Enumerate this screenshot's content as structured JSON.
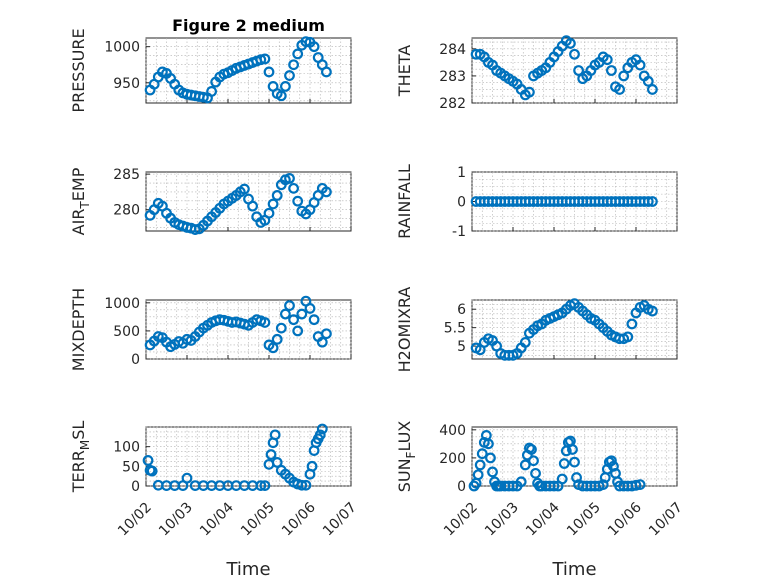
{
  "chart_data": [
    {
      "type": "scatter",
      "title": "Figure 2 medium",
      "ylabel": "PRESSURE",
      "ylim": [
        922,
        1012
      ],
      "yticks": [
        950,
        1000
      ],
      "xlim": [
        0,
        5
      ],
      "xticks": [
        "10/02",
        "10/03",
        "10/04",
        "10/05",
        "10/06",
        "10/07"
      ],
      "show_xticklabels": false,
      "xlabel": "",
      "x": [
        0.1,
        0.2,
        0.3,
        0.4,
        0.5,
        0.6,
        0.7,
        0.8,
        0.9,
        1.0,
        1.1,
        1.2,
        1.3,
        1.4,
        1.5,
        1.6,
        1.7,
        1.8,
        1.9,
        2.0,
        2.1,
        2.2,
        2.3,
        2.4,
        2.5,
        2.6,
        2.7,
        2.8,
        2.9,
        3.0,
        3.1,
        3.2,
        3.3,
        3.4,
        3.5,
        3.6,
        3.7,
        3.8,
        3.9,
        4.0,
        4.1,
        4.2,
        4.3,
        4.4
      ],
      "y": [
        940,
        948,
        958,
        965,
        963,
        956,
        948,
        940,
        936,
        934,
        933,
        932,
        931,
        930,
        929,
        938,
        951,
        958,
        962,
        964,
        967,
        970,
        972,
        974,
        976,
        978,
        980,
        982,
        983,
        965,
        945,
        935,
        932,
        945,
        960,
        975,
        990,
        1002,
        1007,
        1006,
        1000,
        985,
        975,
        965
      ]
    },
    {
      "type": "scatter",
      "title": "",
      "ylabel": "THETA",
      "ylim": [
        282,
        284.4
      ],
      "yticks": [
        282,
        283,
        284
      ],
      "xlim": [
        0,
        5
      ],
      "xticks": [
        "10/02",
        "10/03",
        "10/04",
        "10/05",
        "10/06",
        "10/07"
      ],
      "show_xticklabels": false,
      "xlabel": "",
      "x": [
        0.1,
        0.2,
        0.3,
        0.4,
        0.5,
        0.6,
        0.7,
        0.8,
        0.9,
        1.0,
        1.1,
        1.2,
        1.3,
        1.4,
        1.5,
        1.6,
        1.7,
        1.8,
        1.9,
        2.0,
        2.1,
        2.2,
        2.3,
        2.4,
        2.5,
        2.6,
        2.7,
        2.8,
        2.9,
        3.0,
        3.1,
        3.2,
        3.3,
        3.4,
        3.5,
        3.6,
        3.7,
        3.8,
        3.9,
        4.0,
        4.1,
        4.2,
        4.3,
        4.4
      ],
      "y": [
        283.8,
        283.8,
        283.7,
        283.5,
        283.4,
        283.2,
        283.1,
        283.0,
        282.9,
        282.8,
        282.7,
        282.5,
        282.3,
        282.4,
        283.0,
        283.1,
        283.2,
        283.3,
        283.5,
        283.7,
        283.9,
        284.1,
        284.3,
        284.2,
        283.8,
        283.2,
        282.9,
        283.0,
        283.2,
        283.4,
        283.5,
        283.7,
        283.6,
        283.2,
        282.6,
        282.5,
        283.0,
        283.3,
        283.5,
        283.6,
        283.4,
        283.0,
        282.8,
        282.5
      ]
    },
    {
      "type": "scatter",
      "title": "",
      "ylabel": "AIR_TEMP",
      "ylim": [
        277,
        285.3
      ],
      "yticks": [
        280,
        285
      ],
      "xlim": [
        0,
        5
      ],
      "xticks": [
        "10/02",
        "10/03",
        "10/04",
        "10/05",
        "10/06",
        "10/07"
      ],
      "show_xticklabels": false,
      "xlabel": "",
      "x": [
        0.1,
        0.2,
        0.3,
        0.4,
        0.5,
        0.6,
        0.7,
        0.8,
        0.9,
        1.0,
        1.1,
        1.2,
        1.3,
        1.4,
        1.5,
        1.6,
        1.7,
        1.8,
        1.9,
        2.0,
        2.1,
        2.2,
        2.3,
        2.4,
        2.5,
        2.6,
        2.7,
        2.8,
        2.9,
        3.0,
        3.1,
        3.2,
        3.3,
        3.4,
        3.5,
        3.6,
        3.7,
        3.8,
        3.9,
        4.0,
        4.1,
        4.2,
        4.3,
        4.4
      ],
      "y": [
        279.2,
        280.0,
        280.9,
        280.5,
        279.5,
        278.8,
        278.2,
        277.9,
        277.7,
        277.5,
        277.4,
        277.2,
        277.3,
        277.8,
        278.4,
        279.0,
        279.6,
        280.2,
        280.8,
        281.2,
        281.6,
        282.0,
        282.5,
        282.9,
        281.5,
        280.5,
        279.0,
        278.2,
        278.5,
        279.5,
        280.8,
        282.0,
        283.5,
        284.2,
        284.4,
        283.0,
        281.2,
        279.8,
        279.4,
        280.0,
        281.0,
        282.0,
        283.0,
        282.5
      ]
    },
    {
      "type": "scatter",
      "title": "",
      "ylabel": "RAINFALL",
      "ylim": [
        -1,
        1
      ],
      "yticks": [
        -1,
        0,
        1
      ],
      "xlim": [
        0,
        5
      ],
      "xticks": [
        "10/02",
        "10/03",
        "10/04",
        "10/05",
        "10/06",
        "10/07"
      ],
      "show_xticklabels": false,
      "xlabel": "",
      "x": [
        0.1,
        0.2,
        0.3,
        0.4,
        0.5,
        0.6,
        0.7,
        0.8,
        0.9,
        1.0,
        1.1,
        1.2,
        1.3,
        1.4,
        1.5,
        1.6,
        1.7,
        1.8,
        1.9,
        2.0,
        2.1,
        2.2,
        2.3,
        2.4,
        2.5,
        2.6,
        2.7,
        2.8,
        2.9,
        3.0,
        3.1,
        3.2,
        3.3,
        3.4,
        3.5,
        3.6,
        3.7,
        3.8,
        3.9,
        4.0,
        4.1,
        4.2,
        4.3,
        4.4
      ],
      "y": [
        0,
        0,
        0,
        0,
        0,
        0,
        0,
        0,
        0,
        0,
        0,
        0,
        0,
        0,
        0,
        0,
        0,
        0,
        0,
        0,
        0,
        0,
        0,
        0,
        0,
        0,
        0,
        0,
        0,
        0,
        0,
        0,
        0,
        0,
        0,
        0,
        0,
        0,
        0,
        0,
        0,
        0,
        0,
        0
      ]
    },
    {
      "type": "scatter",
      "title": "",
      "ylabel": "MIXDEPTH",
      "ylim": [
        0,
        1050
      ],
      "yticks": [
        0,
        500,
        1000
      ],
      "xlim": [
        0,
        5
      ],
      "xticks": [
        "10/02",
        "10/03",
        "10/04",
        "10/05",
        "10/06",
        "10/07"
      ],
      "show_xticklabels": false,
      "xlabel": "",
      "x": [
        0.1,
        0.2,
        0.3,
        0.4,
        0.5,
        0.6,
        0.7,
        0.8,
        0.9,
        1.0,
        1.1,
        1.2,
        1.3,
        1.4,
        1.5,
        1.6,
        1.7,
        1.8,
        1.9,
        2.0,
        2.1,
        2.2,
        2.3,
        2.4,
        2.5,
        2.6,
        2.7,
        2.8,
        2.9,
        3.0,
        3.1,
        3.2,
        3.3,
        3.4,
        3.5,
        3.6,
        3.7,
        3.8,
        3.9,
        4.0,
        4.1,
        4.2,
        4.3,
        4.4
      ],
      "y": [
        250,
        320,
        400,
        380,
        300,
        220,
        260,
        310,
        280,
        350,
        330,
        400,
        480,
        550,
        600,
        650,
        680,
        700,
        690,
        670,
        650,
        660,
        640,
        620,
        600,
        650,
        700,
        680,
        650,
        250,
        200,
        350,
        550,
        800,
        950,
        700,
        500,
        800,
        1030,
        900,
        700,
        400,
        300,
        450
      ]
    },
    {
      "type": "scatter",
      "title": "",
      "ylabel": "H2OMIXRA",
      "ylim": [
        4.65,
        6.25
      ],
      "yticks": [
        5,
        5.5,
        6
      ],
      "xlim": [
        0,
        5
      ],
      "xticks": [
        "10/02",
        "10/03",
        "10/04",
        "10/05",
        "10/06",
        "10/07"
      ],
      "show_xticklabels": false,
      "xlabel": "",
      "x": [
        0.1,
        0.2,
        0.3,
        0.4,
        0.5,
        0.6,
        0.7,
        0.8,
        0.9,
        1.0,
        1.1,
        1.2,
        1.3,
        1.4,
        1.5,
        1.6,
        1.7,
        1.8,
        1.9,
        2.0,
        2.1,
        2.2,
        2.3,
        2.4,
        2.5,
        2.6,
        2.7,
        2.8,
        2.9,
        3.0,
        3.1,
        3.2,
        3.3,
        3.4,
        3.5,
        3.6,
        3.7,
        3.8,
        3.9,
        4.0,
        4.1,
        4.2,
        4.3,
        4.4
      ],
      "y": [
        4.95,
        4.9,
        5.1,
        5.2,
        5.15,
        5.0,
        4.8,
        4.75,
        4.75,
        4.75,
        4.8,
        4.95,
        5.1,
        5.35,
        5.45,
        5.55,
        5.6,
        5.7,
        5.75,
        5.8,
        5.85,
        5.9,
        6.0,
        6.1,
        6.15,
        6.05,
        5.95,
        5.85,
        5.75,
        5.7,
        5.6,
        5.5,
        5.4,
        5.3,
        5.25,
        5.2,
        5.2,
        5.25,
        5.6,
        5.9,
        6.05,
        6.1,
        6.0,
        5.95
      ]
    },
    {
      "type": "scatter",
      "title": "",
      "ylabel": "TERR_MSL",
      "ylim": [
        0,
        150
      ],
      "yticks": [
        0,
        50,
        100
      ],
      "xlim": [
        0,
        5
      ],
      "xticks": [
        "10/02",
        "10/03",
        "10/04",
        "10/05",
        "10/06",
        "10/07"
      ],
      "show_xticklabels": true,
      "xlabel": "Time",
      "x": [
        0.05,
        0.1,
        0.15,
        0.3,
        0.5,
        0.7,
        0.9,
        1.0,
        1.2,
        1.4,
        1.6,
        1.8,
        2.0,
        2.2,
        2.4,
        2.6,
        2.8,
        2.9,
        3.0,
        3.05,
        3.1,
        3.15,
        3.2,
        3.3,
        3.4,
        3.5,
        3.6,
        3.7,
        3.8,
        3.9,
        4.0,
        4.05,
        4.1,
        4.15,
        4.2,
        4.25,
        4.3
      ],
      "y": [
        65,
        40,
        38,
        2,
        1,
        1,
        1,
        20,
        1,
        1,
        1,
        1,
        1,
        1,
        1,
        1,
        1,
        1,
        55,
        80,
        110,
        130,
        60,
        40,
        30,
        20,
        10,
        5,
        2,
        2,
        30,
        50,
        90,
        110,
        120,
        130,
        145
      ]
    },
    {
      "type": "scatter",
      "title": "",
      "ylabel": "SUN_FLUX",
      "ylim": [
        0,
        420
      ],
      "yticks": [
        0,
        200,
        400
      ],
      "xlim": [
        0,
        5
      ],
      "xticks": [
        "10/02",
        "10/03",
        "10/04",
        "10/05",
        "10/06",
        "10/07"
      ],
      "show_xticklabels": true,
      "xlabel": "Time",
      "x": [
        0.05,
        0.1,
        0.15,
        0.2,
        0.25,
        0.3,
        0.35,
        0.4,
        0.45,
        0.5,
        0.55,
        0.6,
        0.65,
        0.7,
        0.8,
        0.9,
        1.0,
        1.1,
        1.2,
        1.3,
        1.35,
        1.4,
        1.45,
        1.5,
        1.55,
        1.6,
        1.65,
        1.7,
        1.8,
        1.9,
        2.0,
        2.1,
        2.2,
        2.25,
        2.3,
        2.35,
        2.4,
        2.45,
        2.5,
        2.55,
        2.6,
        2.7,
        2.8,
        2.9,
        3.0,
        3.1,
        3.2,
        3.25,
        3.3,
        3.35,
        3.4,
        3.45,
        3.5,
        3.55,
        3.6,
        3.7,
        3.8,
        3.9,
        4.0,
        4.1
      ],
      "y": [
        0,
        20,
        80,
        150,
        230,
        310,
        360,
        300,
        200,
        100,
        30,
        0,
        0,
        0,
        0,
        0,
        0,
        0,
        30,
        150,
        220,
        270,
        260,
        180,
        90,
        20,
        0,
        0,
        0,
        0,
        0,
        0,
        50,
        160,
        250,
        310,
        320,
        260,
        170,
        60,
        10,
        0,
        0,
        0,
        0,
        0,
        10,
        60,
        120,
        170,
        180,
        140,
        90,
        30,
        0,
        0,
        0,
        0,
        5,
        10
      ]
    }
  ]
}
